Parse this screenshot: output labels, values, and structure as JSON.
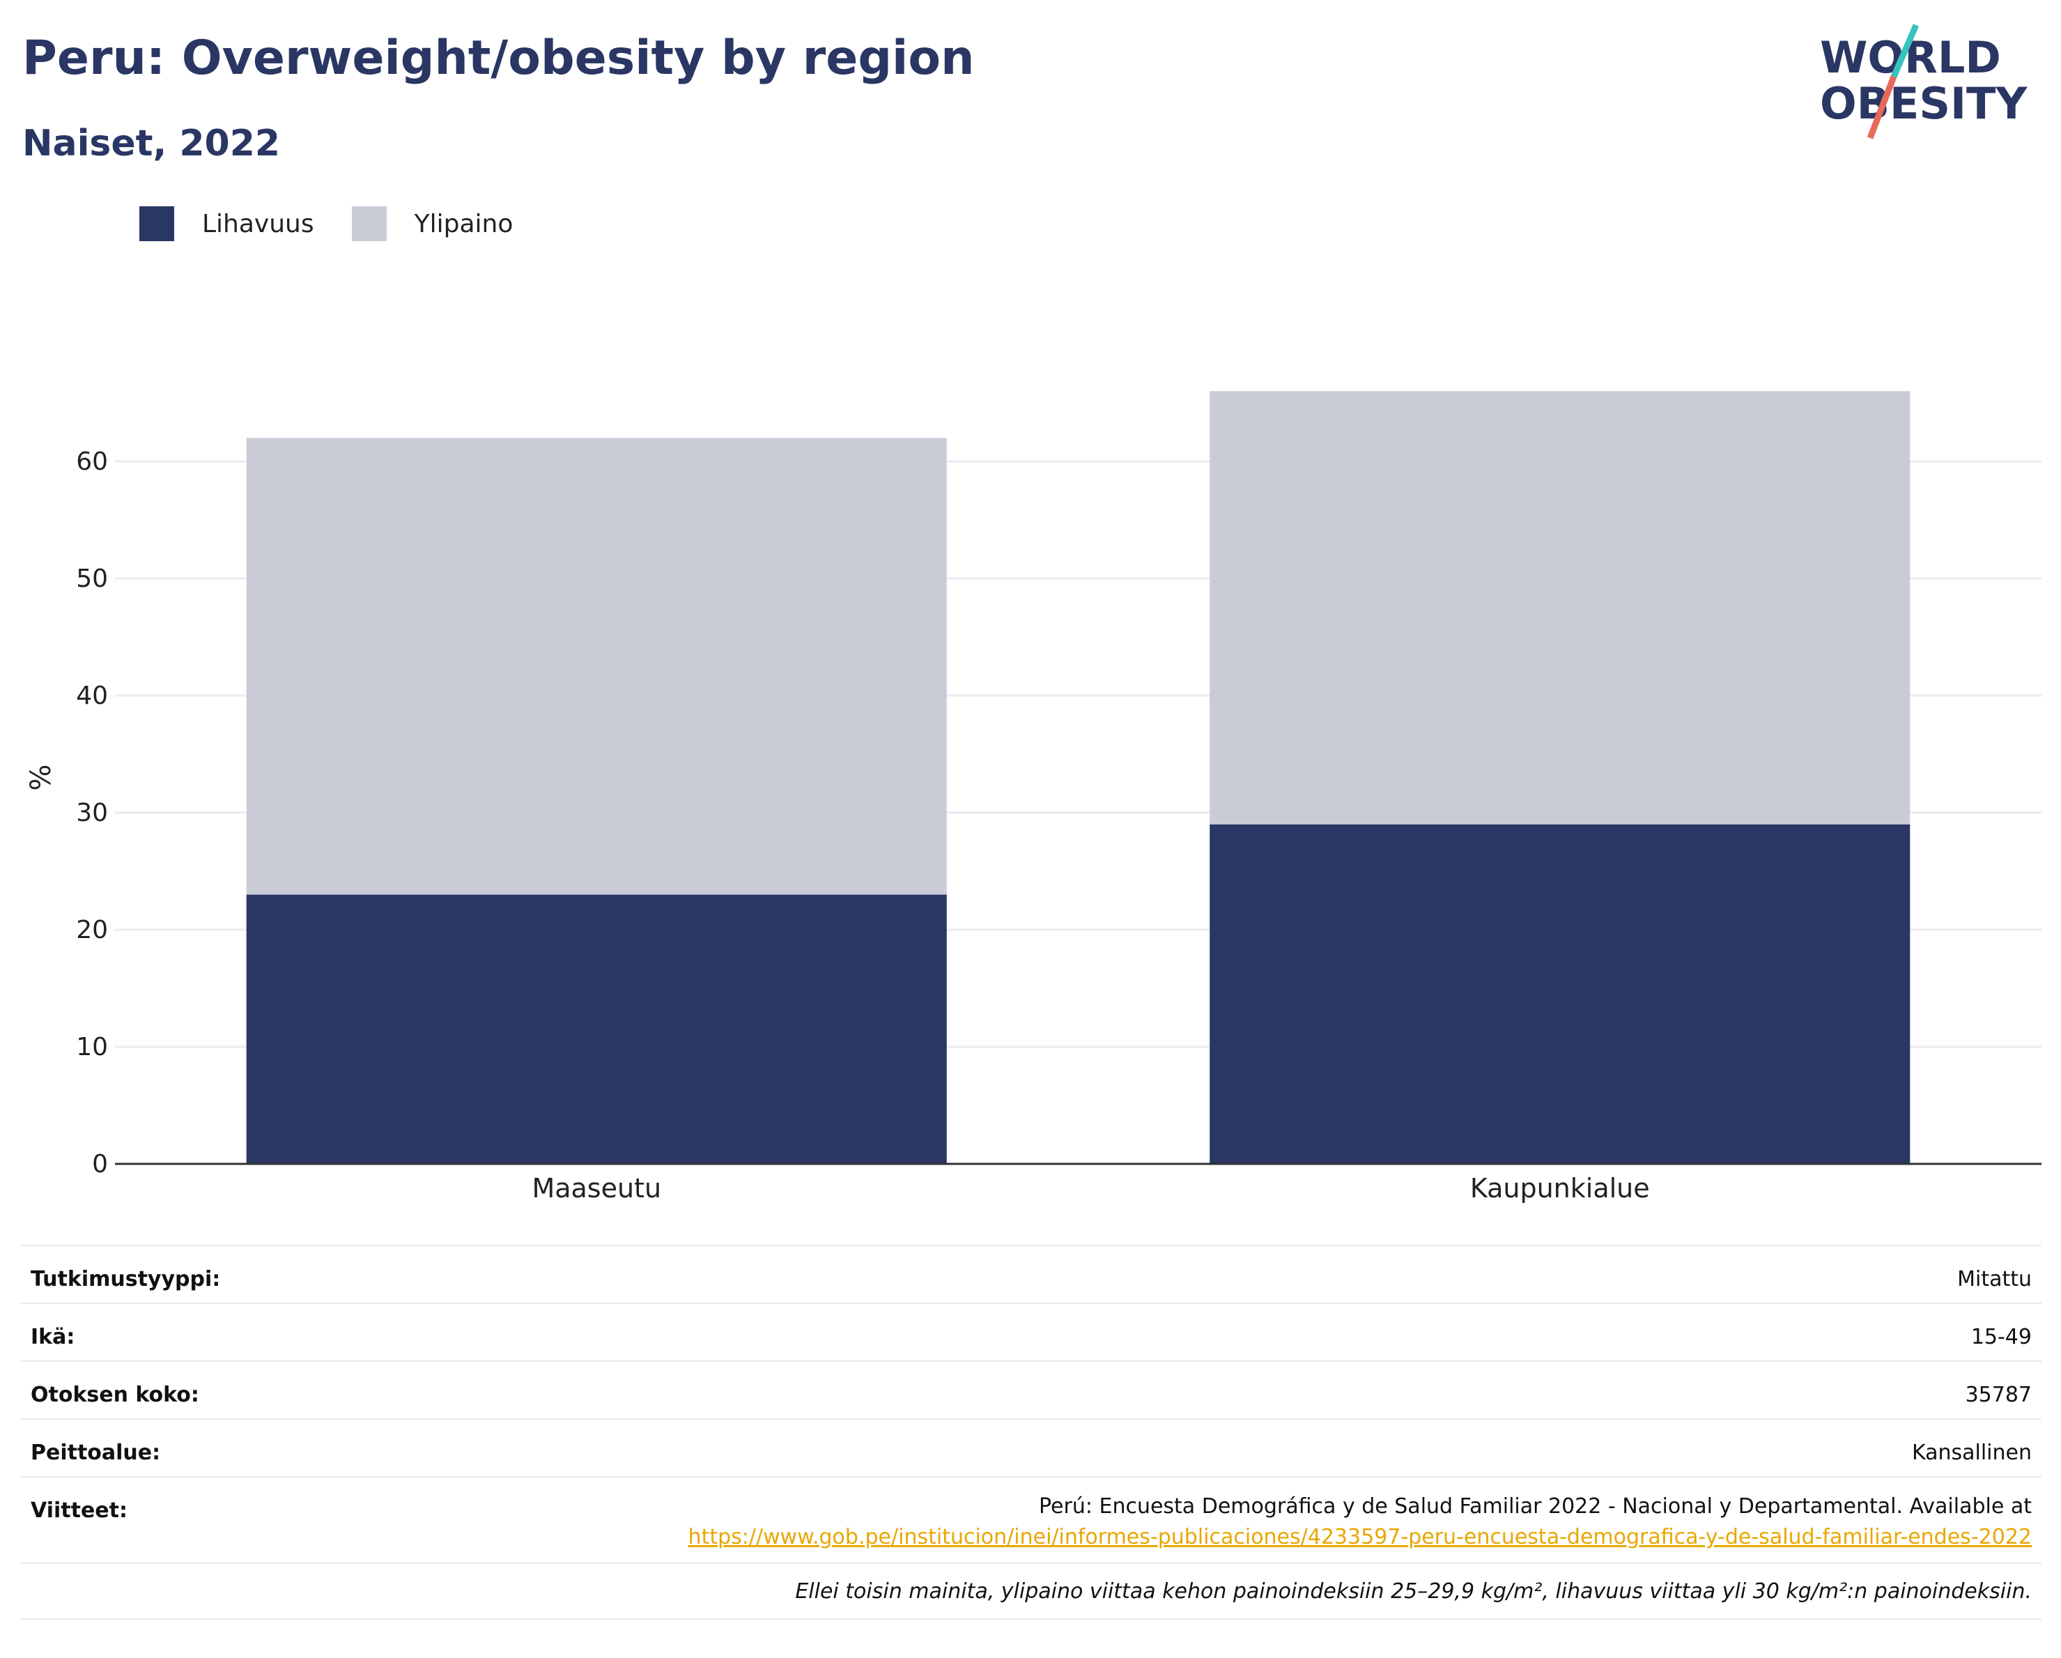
{
  "header": {
    "title": "Peru: Overweight/obesity by region",
    "subtitle": "Naiset, 2022"
  },
  "logo": {
    "line1": "WORLD",
    "line2": "OBESITY",
    "text_color": "#2a3663",
    "slash_colors": [
      "#36c3c0",
      "#e8685a"
    ]
  },
  "chart_data": {
    "type": "bar",
    "stacked": true,
    "categories": [
      "Maaseutu",
      "Kaupunkialue"
    ],
    "series": [
      {
        "name": "Lihavuus",
        "values": [
          23,
          29
        ],
        "color": "#2a3663"
      },
      {
        "name": "Ylipaino",
        "values": [
          39,
          37
        ],
        "color": "#c9ccd7"
      }
    ],
    "ylabel": "%",
    "xlabel": "",
    "ylim": [
      0,
      66
    ],
    "yticks": [
      0,
      10,
      20,
      30,
      40,
      50,
      60
    ],
    "grid": true,
    "legend_position": "top-left"
  },
  "meta": {
    "rows": [
      {
        "label": "Tutkimustyyppi:",
        "value": "Mitattu"
      },
      {
        "label": "Ikä:",
        "value": "15-49"
      },
      {
        "label": "Otoksen koko:",
        "value": "35787"
      },
      {
        "label": "Peittoalue:",
        "value": "Kansallinen"
      }
    ],
    "references": {
      "label": "Viitteet:",
      "text": "Perú: Encuesta Demográfica y de Salud Familiar 2022 - Nacional y Departamental. Available at",
      "link": "https://www.gob.pe/institucion/inei/informes-publicaciones/4233597-peru-encuesta-demografica-y-de-salud-familiar-endes-2022"
    },
    "note": "Ellei toisin mainita, ylipaino viittaa kehon painoindeksiin 25–29,9 kg/m², lihavuus viittaa yli 30 kg/m²:n painoindeksiin."
  }
}
